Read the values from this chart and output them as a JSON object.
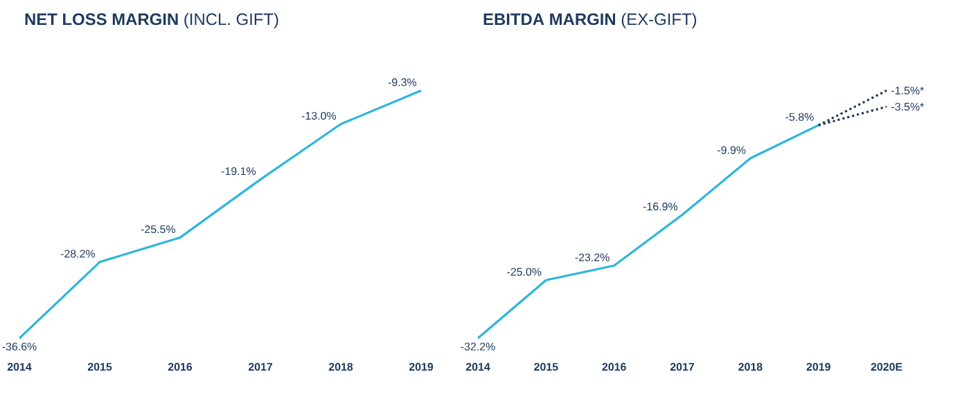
{
  "chart_data": [
    {
      "type": "line",
      "title": "**NET LOSS MARGIN** (INCL. GIFT)",
      "categories": [
        "2014",
        "2015",
        "2016",
        "2017",
        "2018",
        "2019"
      ],
      "series": [
        {
          "color": "#2bb5dc",
          "line_style": "solid",
          "values": [
            -36.6,
            -28.2,
            -25.5,
            -19.1,
            -13.0,
            -9.3
          ],
          "value_labels": [
            "-36.6%",
            "-28.2%",
            "-25.5%",
            "-19.1%",
            "-13.0%",
            "-9.3%"
          ]
        }
      ]
    },
    {
      "type": "line",
      "title": "**EBITDA MARGIN** (EX-GIFT)",
      "categories": [
        "2014",
        "2015",
        "2016",
        "2017",
        "2018",
        "2019",
        "2020E"
      ],
      "series": [
        {
          "color": "#2bb5dc",
          "line_style": "solid",
          "values": [
            -32.2,
            -25.0,
            -23.2,
            -16.9,
            -9.9,
            -5.8,
            null
          ],
          "value_labels": [
            "-32.2%",
            "-25.0%",
            "-23.2%",
            "-16.9%",
            "-9.9%",
            "-5.8%",
            null
          ]
        },
        {
          "color": "#1f3a5f",
          "line_style": "dotted",
          "values": [
            null,
            null,
            null,
            null,
            null,
            -5.8,
            -1.5
          ],
          "value_labels": [
            null,
            null,
            null,
            null,
            null,
            null,
            "-1.5%*"
          ]
        },
        {
          "color": "#1f3a5f",
          "line_style": "dotted",
          "values": [
            null,
            null,
            null,
            null,
            null,
            -5.8,
            -3.5
          ],
          "value_labels": [
            null,
            null,
            null,
            null,
            null,
            null,
            "-3.5%*"
          ]
        }
      ]
    }
  ]
}
